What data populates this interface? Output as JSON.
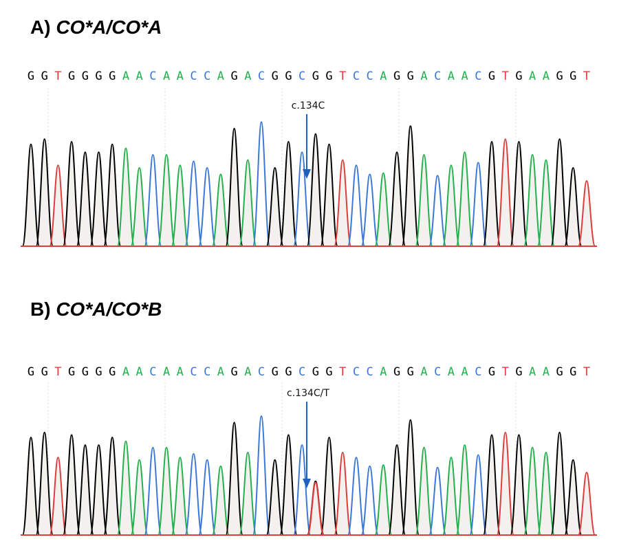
{
  "panels": [
    {
      "id": "a",
      "label": "A)",
      "genotype": "CO*A/CO*A",
      "annotation": "c.134C",
      "sequence": "GGTGGGGAACAACCAGACGGCGGTCCAGGACAACGTGAAGGT"
    },
    {
      "id": "b",
      "label": "B)",
      "genotype": "CO*A/CO*B",
      "annotation": "c.134C/T",
      "sequence": "GGTGGGGAACAACCAGACGGCGGTCCAGGACAACGTGAAGGT"
    }
  ],
  "base_colors": {
    "G": "#000000",
    "A": "#22b14c",
    "C": "#3c78d8",
    "T": "#e03c3c"
  },
  "arrow_color": "#1f5fbf"
}
